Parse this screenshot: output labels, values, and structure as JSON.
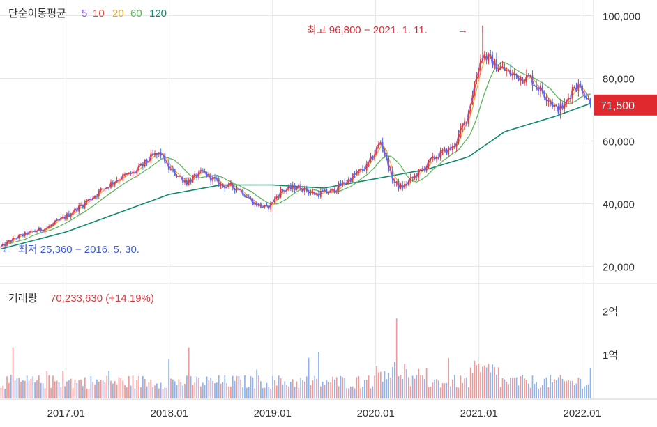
{
  "colors": {
    "up": "#e0393e",
    "down": "#4a6cf0",
    "ma5": "#8e5be8",
    "ma10": "#e8473c",
    "ma20": "#eeaa30",
    "ma60": "#5bb85a",
    "ma120": "#0d8a6e",
    "vol_up": "#ef9a9a",
    "vol_down": "#8fb4f0",
    "grid": "#e6e6e6",
    "axis_text": "#333333",
    "high_label": "#d62f3a",
    "low_label": "#3b5bdb",
    "price_tag_bg": "#e0292f",
    "price_tag_text": "#ffffff"
  },
  "legend": {
    "title": "단순이동평균",
    "items": [
      {
        "label": "5",
        "color_key": "ma5"
      },
      {
        "label": "10",
        "color_key": "ma10"
      },
      {
        "label": "20",
        "color_key": "ma20"
      },
      {
        "label": "60",
        "color_key": "ma60"
      },
      {
        "label": "120",
        "color_key": "ma120"
      }
    ]
  },
  "high_note": "최고 96,800 − 2021. 1. 11.",
  "high_arrow": "→",
  "low_note": "최저 25,360 − 2016. 5. 30.",
  "low_arrow": "←",
  "current_price_label": "71,500",
  "volume_header": {
    "label": "거래량",
    "value": "70,233,630 (+14.19%)"
  },
  "chart_data": {
    "type": "candlestick",
    "x_start": "2016.05",
    "x_end": "2022.02",
    "x_tick_labels": [
      "2017.01",
      "2018.01",
      "2019.01",
      "2020.01",
      "2021.01",
      "2022.01"
    ],
    "x_tick_positions": [
      2017.0,
      2018.0,
      2019.0,
      2020.0,
      2021.0,
      2022.0
    ],
    "price_range": [
      15000,
      105000
    ],
    "price_ticks": [
      20000,
      40000,
      60000,
      80000,
      100000
    ],
    "price_tick_labels": [
      "20,000",
      "40,000",
      "60,000",
      "80,000",
      "100,000"
    ],
    "volume_range": [
      0,
      250000000
    ],
    "volume_ticks": [
      100000000,
      200000000
    ],
    "volume_tick_labels": [
      "1억",
      "2억"
    ],
    "price_anchors": [
      [
        2016.36,
        26000
      ],
      [
        2016.5,
        29000
      ],
      [
        2016.67,
        31000
      ],
      [
        2016.83,
        32500
      ],
      [
        2017.0,
        36000
      ],
      [
        2017.17,
        40000
      ],
      [
        2017.33,
        44000
      ],
      [
        2017.5,
        48000
      ],
      [
        2017.67,
        50000
      ],
      [
        2017.83,
        55000
      ],
      [
        2017.92,
        56000
      ],
      [
        2018.0,
        51000
      ],
      [
        2018.17,
        47000
      ],
      [
        2018.33,
        50000
      ],
      [
        2018.5,
        46000
      ],
      [
        2018.67,
        45000
      ],
      [
        2018.83,
        40000
      ],
      [
        2018.95,
        38500
      ],
      [
        2019.08,
        44000
      ],
      [
        2019.25,
        45500
      ],
      [
        2019.42,
        43000
      ],
      [
        2019.58,
        44000
      ],
      [
        2019.75,
        48000
      ],
      [
        2019.92,
        52000
      ],
      [
        2020.05,
        60000
      ],
      [
        2020.17,
        47000
      ],
      [
        2020.25,
        45000
      ],
      [
        2020.42,
        50000
      ],
      [
        2020.58,
        55000
      ],
      [
        2020.75,
        58000
      ],
      [
        2020.88,
        67000
      ],
      [
        2020.97,
        80000
      ],
      [
        2021.03,
        88000
      ],
      [
        2021.17,
        84000
      ],
      [
        2021.33,
        81000
      ],
      [
        2021.5,
        80000
      ],
      [
        2021.58,
        77000
      ],
      [
        2021.67,
        74000
      ],
      [
        2021.75,
        70000
      ],
      [
        2021.83,
        71000
      ],
      [
        2021.92,
        78000
      ],
      [
        2022.0,
        77000
      ],
      [
        2022.08,
        71500
      ]
    ],
    "ma120_anchors": [
      [
        2016.36,
        25500
      ],
      [
        2017.0,
        31000
      ],
      [
        2017.5,
        37000
      ],
      [
        2018.0,
        43000
      ],
      [
        2018.5,
        46000
      ],
      [
        2019.0,
        46000
      ],
      [
        2019.5,
        45000
      ],
      [
        2020.0,
        48000
      ],
      [
        2020.5,
        51000
      ],
      [
        2020.9,
        55000
      ],
      [
        2021.25,
        63000
      ],
      [
        2021.75,
        68000
      ],
      [
        2022.08,
        72000
      ]
    ],
    "current_price": 71500,
    "high": {
      "value": 96800,
      "date": "2021.01.11"
    },
    "low": {
      "value": 25360,
      "date": "2016.05.30"
    },
    "last_volume": 70233630
  }
}
